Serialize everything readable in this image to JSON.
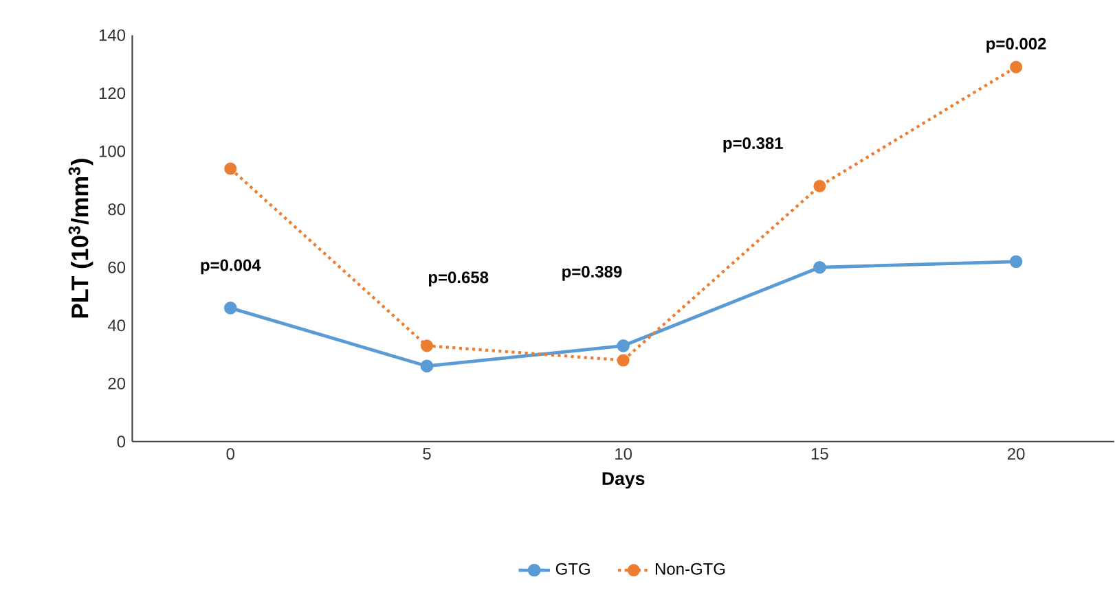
{
  "chart_data": {
    "type": "line",
    "xlabel": "Days",
    "ylabel": "PLT (10$^{3}$/mm$^{3}$)",
    "x": [
      0,
      5,
      10,
      15,
      20
    ],
    "series": [
      {
        "name": "GTG",
        "color": "#5b9bd5",
        "line_style": "solid",
        "values": [
          46,
          26,
          33,
          60,
          62
        ]
      },
      {
        "name": "Non-GTG",
        "color": "#ed7d31",
        "line_style": "dotted",
        "values": [
          94,
          33,
          28,
          88,
          129
        ]
      }
    ],
    "xlim": [
      -2.5,
      22.5
    ],
    "xticks": [
      0,
      5,
      10,
      15,
      20
    ],
    "ylim": [
      0,
      140
    ],
    "yticks": [
      0,
      20,
      40,
      60,
      80,
      100,
      120,
      140
    ],
    "grid": false,
    "legend": "bottom",
    "marker": "circle",
    "annotations": [
      "p=0.004",
      "p=0.658",
      "p=0.389",
      "p=0.381",
      "p=0.002"
    ]
  }
}
